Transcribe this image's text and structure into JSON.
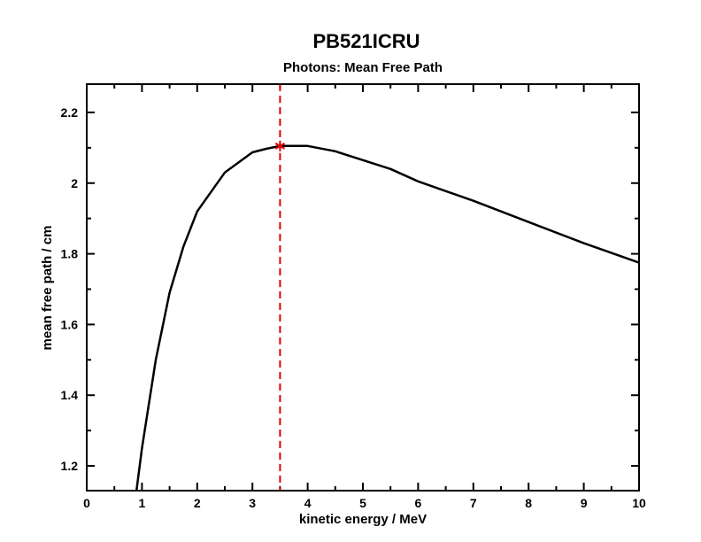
{
  "chart_data": {
    "type": "line",
    "title": "PB521ICRU",
    "subtitle": "Photons:  Mean Free Path",
    "xlabel": "kinetic energy / MeV",
    "ylabel": "mean free path / cm",
    "xlim": [
      0,
      10
    ],
    "ylim": [
      1.13,
      2.28
    ],
    "xticks": [
      "0",
      "1",
      "2",
      "3",
      "4",
      "5",
      "6",
      "7",
      "8",
      "9",
      "10"
    ],
    "yticks": [
      "1.2",
      "1.4",
      "1.6",
      "1.8",
      "2",
      "2.2"
    ],
    "grid": false,
    "line_color": "#000000",
    "marker_color": "#dd0000",
    "series": [
      {
        "x": [
          0.9,
          1.0,
          1.25,
          1.5,
          1.75,
          2.0,
          2.5,
          3.0,
          3.25,
          3.5,
          4.0,
          4.5,
          5.0,
          5.5,
          6.0,
          7.0,
          8.0,
          9.0,
          10.0
        ],
        "y": [
          1.13,
          1.25,
          1.5,
          1.69,
          1.82,
          1.92,
          2.03,
          2.087,
          2.097,
          2.105,
          2.105,
          2.09,
          2.065,
          2.04,
          2.005,
          1.95,
          1.89,
          1.83,
          1.775
        ]
      }
    ],
    "marker": {
      "x": 3.5,
      "y": 2.105,
      "symbol": "asterisk"
    },
    "vline": {
      "x": 3.5,
      "style": "dashed"
    }
  }
}
